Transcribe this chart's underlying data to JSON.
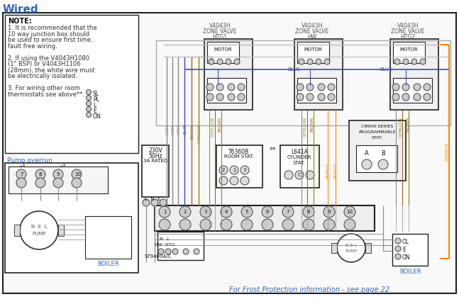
{
  "title": "Wired",
  "bg_color": "#ffffff",
  "note_text_bold": "NOTE:",
  "note_lines": [
    "1. It is recommended that the",
    "10 way junction box should",
    "be used to ensure first time,",
    "fault free wiring.",
    "",
    "2. If using the V4043H1080",
    "(1\" BSP) or V4043H1106",
    "(28mm), the white wire must",
    "be electrically isolated.",
    "",
    "3. For wiring other room",
    "thermostats see above**."
  ],
  "pump_overrun_label": "Pump overrun",
  "frost_text": "For Frost Protection information - see page 22",
  "c_grey": "#888888",
  "c_blue": "#4444cc",
  "c_brown": "#996633",
  "c_gyellow": "#888800",
  "c_orange": "#FF8800",
  "c_black": "#111111",
  "c_text_blue": "#3366bb",
  "c_text_orange": "#cc6600",
  "c_wire_grey": "#aaaaaa",
  "c_box_fill": "#f5f5f5",
  "c_border": "#222222"
}
